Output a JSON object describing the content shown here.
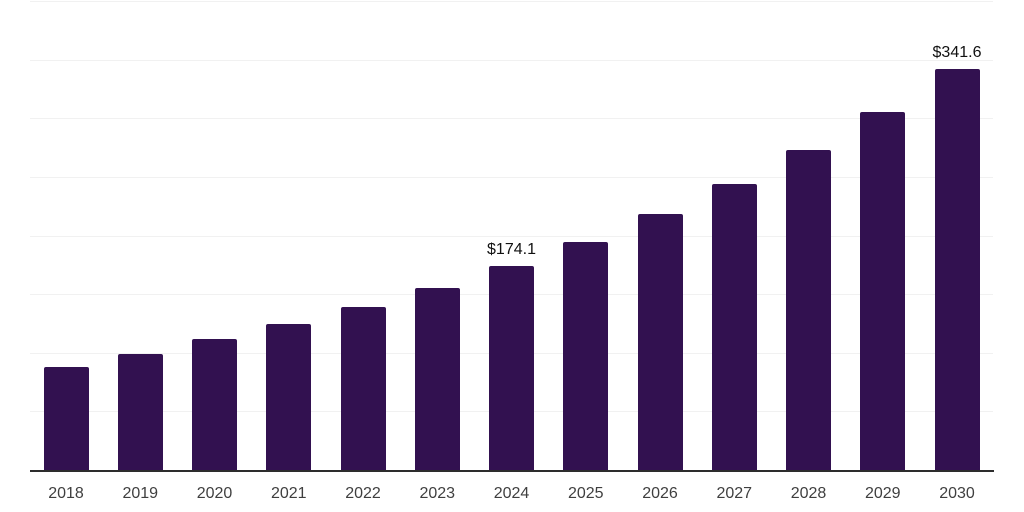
{
  "chart_data": {
    "type": "bar",
    "title": "",
    "xlabel": "",
    "ylabel": "",
    "categories": [
      "2018",
      "2019",
      "2020",
      "2021",
      "2022",
      "2023",
      "2024",
      "2025",
      "2026",
      "2027",
      "2028",
      "2029",
      "2030"
    ],
    "values": [
      87.5,
      99.0,
      111.5,
      124.5,
      139.0,
      155.0,
      174.1,
      194.8,
      218.0,
      243.9,
      272.9,
      305.3,
      341.6
    ],
    "value_labels": [
      {
        "category": "2024",
        "text": "$174.1"
      },
      {
        "category": "2030",
        "text": "$341.6"
      }
    ],
    "ylim": [
      0,
      400
    ],
    "gridline_step": 50,
    "grid": "horizontal-only",
    "y_tick_labels_shown": false,
    "legend": "none",
    "colors": {
      "bar": "#321150",
      "gridline": "#f1f1f1",
      "axis_line": "#2d2d2d",
      "value_label_text": "#111111",
      "tick_label_text": "#3f3f3f",
      "background": "#ffffff"
    }
  }
}
